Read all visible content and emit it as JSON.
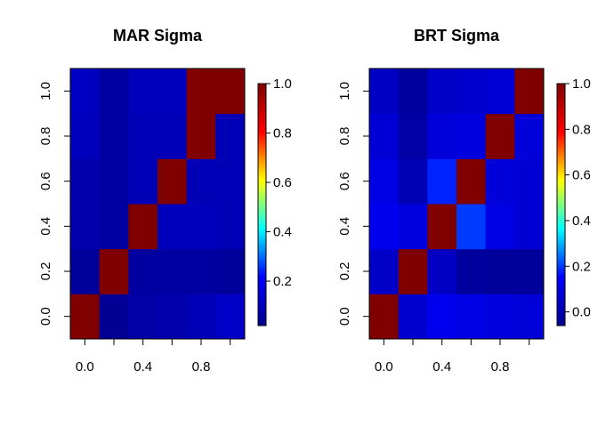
{
  "colors": {
    "scale": [
      "#00008F",
      "#0000FF",
      "#00FFFF",
      "#FFFF00",
      "#FF0000",
      "#800000"
    ],
    "frame": "#000000"
  },
  "chart_data": [
    {
      "type": "heatmap",
      "title": "MAR Sigma",
      "x_ticks": [
        "0.0",
        "0.4",
        "0.8"
      ],
      "y_ticks": [
        "0.0",
        "0.2",
        "0.4",
        "0.6",
        "0.8",
        "1.0"
      ],
      "xlim": [
        -0.1,
        1.1
      ],
      "ylim": [
        -0.1,
        1.1
      ],
      "x_centers": [
        0.0,
        0.2,
        0.4,
        0.6,
        0.8,
        1.0
      ],
      "y_centers": [
        0.0,
        0.2,
        0.4,
        0.6,
        0.8,
        1.0
      ],
      "values": [
        [
          1.0,
          0.03,
          0.06,
          0.07,
          0.09,
          0.12
        ],
        [
          0.04,
          1.0,
          0.05,
          0.05,
          0.05,
          0.04
        ],
        [
          0.07,
          0.05,
          1.0,
          0.1,
          0.1,
          0.09
        ],
        [
          0.07,
          0.05,
          0.09,
          1.0,
          0.09,
          0.09
        ],
        [
          0.1,
          0.05,
          0.09,
          0.09,
          1.0,
          0.09
        ],
        [
          0.11,
          0.05,
          0.1,
          0.1,
          1.0,
          1.0
        ]
      ],
      "colorbar": {
        "ticks": [
          "0.2",
          "0.4",
          "0.6",
          "0.8",
          "1.0"
        ],
        "min": 0.02,
        "max": 1.0
      }
    },
    {
      "type": "heatmap",
      "title": "BRT Sigma",
      "x_ticks": [
        "0.0",
        "0.4",
        "0.8"
      ],
      "y_ticks": [
        "0.0",
        "0.2",
        "0.4",
        "0.6",
        "0.8",
        "1.0"
      ],
      "xlim": [
        -0.1,
        1.1
      ],
      "ylim": [
        -0.1,
        1.1
      ],
      "x_centers": [
        0.0,
        0.2,
        0.4,
        0.6,
        0.8,
        1.0
      ],
      "y_centers": [
        0.0,
        0.2,
        0.4,
        0.6,
        0.8,
        1.0
      ],
      "values": [
        [
          1.0,
          0.06,
          0.12,
          0.1,
          0.09,
          0.08
        ],
        [
          0.05,
          1.0,
          0.04,
          -0.03,
          -0.04,
          -0.04
        ],
        [
          0.12,
          0.09,
          1.0,
          0.2,
          0.1,
          0.07
        ],
        [
          0.1,
          0.01,
          0.18,
          1.0,
          0.08,
          0.07
        ],
        [
          0.07,
          -0.02,
          0.08,
          0.09,
          1.0,
          0.08
        ],
        [
          0.04,
          -0.03,
          0.05,
          0.06,
          0.07,
          1.0
        ]
      ],
      "colorbar": {
        "ticks": [
          "0.0",
          "0.2",
          "0.4",
          "0.6",
          "0.8",
          "1.0"
        ],
        "min": -0.06,
        "max": 1.0
      }
    }
  ]
}
